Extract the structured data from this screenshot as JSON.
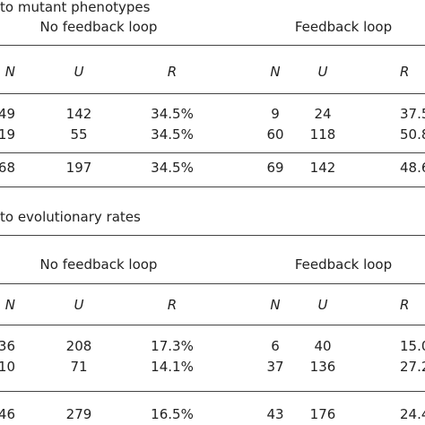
{
  "sections": [
    {
      "title": "to mutant phenotypes",
      "groups": [
        "No feedback loop",
        "Feedback loop"
      ],
      "headers": [
        "N",
        "U",
        "R",
        "N",
        "U",
        "R"
      ],
      "rows": [
        [
          "49",
          "142",
          "34.5%",
          "9",
          "24",
          "37.5"
        ],
        [
          "19",
          "55",
          "34.5%",
          "60",
          "118",
          "50.8"
        ]
      ],
      "total": [
        "68",
        "197",
        "34.5%",
        "69",
        "142",
        "48.6"
      ]
    },
    {
      "title": "to evolutionary rates",
      "groups": [
        "No feedback loop",
        "Feedback loop"
      ],
      "headers": [
        "N",
        "U",
        "R",
        "N",
        "U",
        "R"
      ],
      "rows": [
        [
          "36",
          "208",
          "17.3%",
          "6",
          "40",
          "15.0"
        ],
        [
          "10",
          "71",
          "14.1%",
          "37",
          "136",
          "27.2"
        ]
      ],
      "total": [
        "46",
        "279",
        "16.5%",
        "43",
        "176",
        "24.4"
      ]
    }
  ]
}
